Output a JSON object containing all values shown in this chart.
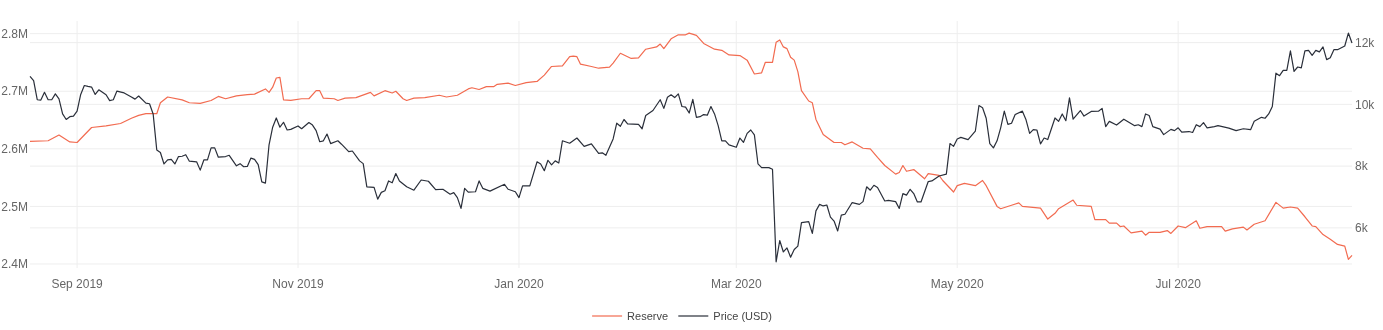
{
  "chart_data": {
    "type": "line",
    "xlim": [
      "2019-08-19",
      "2020-08-18"
    ],
    "xticks": [
      {
        "value": "2019-09-01",
        "label": "Sep 2019"
      },
      {
        "value": "2019-11-01",
        "label": "Nov 2019"
      },
      {
        "value": "2020-01-01",
        "label": "Jan 2020"
      },
      {
        "value": "2020-03-01",
        "label": "Mar 2020"
      },
      {
        "value": "2020-05-01",
        "label": "May 2020"
      },
      {
        "value": "2020-07-01",
        "label": "Jul 2020"
      }
    ],
    "ylim": [
      2393000,
      2822000
    ],
    "yticks": [
      {
        "value": 2400000,
        "label": "2.4M"
      },
      {
        "value": 2500000,
        "label": "2.5M"
      },
      {
        "value": 2600000,
        "label": "2.6M"
      },
      {
        "value": 2700000,
        "label": "2.7M"
      },
      {
        "value": 2800000,
        "label": "2.8M"
      }
    ],
    "y2lim": [
      4700,
      12700
    ],
    "y2ticks": [
      {
        "value": 6000,
        "label": "6k"
      },
      {
        "value": 8000,
        "label": "8k"
      },
      {
        "value": 10000,
        "label": "10k"
      },
      {
        "value": 12000,
        "label": "12k"
      }
    ],
    "grid": true,
    "legend": "bottom",
    "series": [
      {
        "name": "Reserve",
        "color": "#f26b50",
        "x": [
          "2019-08-19",
          "2019-08-24",
          "2019-08-27",
          "2019-08-30",
          "2019-09-01",
          "2019-09-05",
          "2019-09-09",
          "2019-09-13",
          "2019-09-16",
          "2019-09-18",
          "2019-09-20",
          "2019-09-23",
          "2019-09-24",
          "2019-09-26",
          "2019-09-30",
          "2019-10-02",
          "2019-10-05",
          "2019-10-08",
          "2019-10-10",
          "2019-10-12",
          "2019-10-15",
          "2019-10-18",
          "2019-10-20",
          "2019-10-23",
          "2019-10-24",
          "2019-10-25",
          "2019-10-26",
          "2019-10-27",
          "2019-10-28",
          "2019-10-30",
          "2019-11-02",
          "2019-11-04",
          "2019-11-06",
          "2019-11-07",
          "2019-11-08",
          "2019-11-11",
          "2019-11-12",
          "2019-11-14",
          "2019-11-17",
          "2019-11-21",
          "2019-11-22",
          "2019-11-25",
          "2019-11-27",
          "2019-11-28",
          "2019-11-30",
          "2019-12-01",
          "2019-12-03",
          "2019-12-06",
          "2019-12-10",
          "2019-12-12",
          "2019-12-15",
          "2019-12-18",
          "2019-12-19",
          "2019-12-21",
          "2019-12-23",
          "2019-12-25",
          "2019-12-26",
          "2019-12-29",
          "2019-12-31",
          "2020-01-03",
          "2020-01-06",
          "2020-01-08",
          "2020-01-10",
          "2020-01-13",
          "2020-01-15",
          "2020-01-16",
          "2020-01-17",
          "2020-01-18",
          "2020-01-21",
          "2020-01-23",
          "2020-01-26",
          "2020-01-27",
          "2020-01-29",
          "2020-02-01",
          "2020-02-03",
          "2020-02-05",
          "2020-02-08",
          "2020-02-09",
          "2020-02-10",
          "2020-02-12",
          "2020-02-14",
          "2020-02-16",
          "2020-02-17",
          "2020-02-19",
          "2020-02-21",
          "2020-02-24",
          "2020-02-26",
          "2020-02-28",
          "2020-03-02",
          "2020-03-04",
          "2020-03-06",
          "2020-03-08",
          "2020-03-09",
          "2020-03-11",
          "2020-03-12",
          "2020-03-13",
          "2020-03-14",
          "2020-03-15",
          "2020-03-16",
          "2020-03-17",
          "2020-03-18",
          "2020-03-19",
          "2020-03-21",
          "2020-03-22",
          "2020-03-23",
          "2020-03-25",
          "2020-03-28",
          "2020-03-30",
          "2020-03-31",
          "2020-04-02",
          "2020-04-05",
          "2020-04-07",
          "2020-04-09",
          "2020-04-11",
          "2020-04-14",
          "2020-04-15",
          "2020-04-16",
          "2020-04-17",
          "2020-04-19",
          "2020-04-22",
          "2020-04-23",
          "2020-04-26",
          "2020-04-27",
          "2020-04-30",
          "2020-05-01",
          "2020-05-03",
          "2020-05-06",
          "2020-05-08",
          "2020-05-09",
          "2020-05-12",
          "2020-05-13",
          "2020-05-16",
          "2020-05-18",
          "2020-05-19",
          "2020-05-24",
          "2020-05-26",
          "2020-05-28",
          "2020-05-29",
          "2020-06-02",
          "2020-06-03",
          "2020-06-07",
          "2020-06-08",
          "2020-06-11",
          "2020-06-12",
          "2020-06-14",
          "2020-06-15",
          "2020-06-16",
          "2020-06-18",
          "2020-06-21",
          "2020-06-22",
          "2020-06-23",
          "2020-06-26",
          "2020-06-28",
          "2020-06-29",
          "2020-07-01",
          "2020-07-03",
          "2020-07-06",
          "2020-07-07",
          "2020-07-09",
          "2020-07-13",
          "2020-07-14",
          "2020-07-16",
          "2020-07-19",
          "2020-07-20",
          "2020-07-22",
          "2020-07-25",
          "2020-07-28",
          "2020-07-30",
          "2020-08-01",
          "2020-08-03",
          "2020-08-05",
          "2020-08-07",
          "2020-08-08",
          "2020-08-10",
          "2020-08-12",
          "2020-08-14",
          "2020-08-16",
          "2020-08-17",
          "2020-08-18"
        ],
        "values": [
          2613000,
          2614000,
          2624000,
          2612000,
          2611000,
          2637000,
          2640000,
          2644000,
          2653000,
          2658000,
          2661000,
          2661000,
          2680000,
          2690000,
          2685000,
          2680000,
          2679000,
          2684000,
          2691000,
          2687000,
          2692000,
          2694000,
          2695000,
          2704000,
          2698000,
          2707000,
          2723000,
          2724000,
          2685000,
          2684000,
          2687000,
          2687000,
          2701000,
          2701000,
          2688000,
          2687000,
          2684000,
          2688000,
          2689000,
          2698000,
          2692000,
          2701000,
          2697000,
          2700000,
          2687000,
          2684000,
          2688000,
          2689000,
          2693000,
          2690000,
          2693000,
          2704000,
          2706000,
          2703000,
          2708000,
          2708000,
          2712000,
          2714000,
          2710000,
          2715000,
          2717000,
          2728000,
          2743000,
          2744000,
          2760000,
          2761000,
          2760000,
          2747000,
          2743000,
          2740000,
          2742000,
          2749000,
          2766000,
          2757000,
          2758000,
          2773000,
          2777000,
          2782000,
          2774000,
          2791000,
          2798000,
          2798000,
          2801000,
          2797000,
          2783000,
          2773000,
          2771000,
          2763000,
          2762000,
          2754000,
          2730000,
          2732000,
          2750000,
          2750000,
          2785000,
          2789000,
          2777000,
          2774000,
          2759000,
          2754000,
          2734000,
          2701000,
          2683000,
          2680000,
          2651000,
          2625000,
          2611000,
          2611000,
          2607000,
          2612000,
          2601000,
          2600000,
          2585000,
          2571000,
          2556000,
          2559000,
          2571000,
          2561000,
          2564000,
          2548000,
          2557000,
          2554000,
          2545000,
          2525000,
          2536000,
          2540000,
          2536000,
          2545000,
          2536000,
          2500000,
          2496000,
          2502000,
          2506000,
          2500000,
          2497000,
          2478000,
          2488000,
          2496000,
          2511000,
          2502000,
          2500000,
          2477000,
          2477000,
          2471000,
          2471000,
          2465000,
          2466000,
          2454000,
          2457000,
          2450000,
          2455000,
          2455000,
          2458000,
          2453000,
          2466000,
          2463000,
          2475000,
          2462000,
          2465000,
          2465000,
          2457000,
          2461000,
          2464000,
          2459000,
          2469000,
          2475000,
          2507000,
          2497000,
          2499000,
          2497000,
          2482000,
          2466000,
          2465000,
          2451000,
          2443000,
          2434000,
          2431000,
          2408000,
          2415000
        ]
      },
      {
        "name": "Price (USD)",
        "color": "#2a2f3a",
        "axis": "y2",
        "x": [
          "2019-08-19",
          "2019-08-20",
          "2019-08-21",
          "2019-08-22",
          "2019-08-23",
          "2019-08-24",
          "2019-08-25",
          "2019-08-26",
          "2019-08-27",
          "2019-08-28",
          "2019-08-29",
          "2019-08-30",
          "2019-08-31",
          "2019-09-01",
          "2019-09-02",
          "2019-09-03",
          "2019-09-04",
          "2019-09-05",
          "2019-09-06",
          "2019-09-07",
          "2019-09-09",
          "2019-09-10",
          "2019-09-11",
          "2019-09-12",
          "2019-09-14",
          "2019-09-16",
          "2019-09-17",
          "2019-09-18",
          "2019-09-20",
          "2019-09-21",
          "2019-09-22",
          "2019-09-23",
          "2019-09-24",
          "2019-09-25",
          "2019-09-26",
          "2019-09-27",
          "2019-09-28",
          "2019-09-29",
          "2019-09-30",
          "2019-10-01",
          "2019-10-02",
          "2019-10-04",
          "2019-10-05",
          "2019-10-06",
          "2019-10-07",
          "2019-10-08",
          "2019-10-09",
          "2019-10-10",
          "2019-10-12",
          "2019-10-13",
          "2019-10-15",
          "2019-10-16",
          "2019-10-17",
          "2019-10-18",
          "2019-10-19",
          "2019-10-20",
          "2019-10-21",
          "2019-10-22",
          "2019-10-23",
          "2019-10-24",
          "2019-10-25",
          "2019-10-26",
          "2019-10-27",
          "2019-10-28",
          "2019-10-29",
          "2019-10-30",
          "2019-11-01",
          "2019-11-02",
          "2019-11-04",
          "2019-11-05",
          "2019-11-06",
          "2019-11-07",
          "2019-11-08",
          "2019-11-09",
          "2019-11-10",
          "2019-11-12",
          "2019-11-13",
          "2019-11-15",
          "2019-11-16",
          "2019-11-18",
          "2019-11-19",
          "2019-11-20",
          "2019-11-22",
          "2019-11-23",
          "2019-11-24",
          "2019-11-25",
          "2019-11-26",
          "2019-11-27",
          "2019-11-28",
          "2019-11-29",
          "2019-12-01",
          "2019-12-03",
          "2019-12-05",
          "2019-12-07",
          "2019-12-09",
          "2019-12-11",
          "2019-12-13",
          "2019-12-14",
          "2019-12-15",
          "2019-12-16",
          "2019-12-17",
          "2019-12-18",
          "2019-12-20",
          "2019-12-21",
          "2019-12-22",
          "2019-12-24",
          "2019-12-28",
          "2019-12-29",
          "2019-12-31",
          "2020-01-01",
          "2020-01-02",
          "2020-01-04",
          "2020-01-06",
          "2020-01-07",
          "2020-01-08",
          "2020-01-09",
          "2020-01-10",
          "2020-01-11",
          "2020-01-12",
          "2020-01-13",
          "2020-01-15",
          "2020-01-17",
          "2020-01-19",
          "2020-01-21",
          "2020-01-23",
          "2020-01-24",
          "2020-01-25",
          "2020-01-27",
          "2020-01-28",
          "2020-01-29",
          "2020-01-30",
          "2020-01-31",
          "2020-02-03",
          "2020-02-04",
          "2020-02-05",
          "2020-02-07",
          "2020-02-09",
          "2020-02-10",
          "2020-02-11",
          "2020-02-12",
          "2020-02-13",
          "2020-02-14",
          "2020-02-15",
          "2020-02-16",
          "2020-02-17",
          "2020-02-18",
          "2020-02-19",
          "2020-02-20",
          "2020-02-21",
          "2020-02-22",
          "2020-02-23",
          "2020-02-24",
          "2020-02-25",
          "2020-02-26",
          "2020-02-27",
          "2020-02-28",
          "2020-03-01",
          "2020-03-02",
          "2020-03-03",
          "2020-03-04",
          "2020-03-05",
          "2020-03-06",
          "2020-03-07",
          "2020-03-08",
          "2020-03-10",
          "2020-03-11",
          "2020-03-12",
          "2020-03-13",
          "2020-03-14",
          "2020-03-15",
          "2020-03-16",
          "2020-03-17",
          "2020-03-18",
          "2020-03-19",
          "2020-03-21",
          "2020-03-22",
          "2020-03-23",
          "2020-03-24",
          "2020-03-25",
          "2020-03-26",
          "2020-03-27",
          "2020-03-28",
          "2020-03-29",
          "2020-03-30",
          "2020-03-31",
          "2020-04-02",
          "2020-04-04",
          "2020-04-05",
          "2020-04-06",
          "2020-04-07",
          "2020-04-08",
          "2020-04-09",
          "2020-04-11",
          "2020-04-12",
          "2020-04-14",
          "2020-04-15",
          "2020-04-16",
          "2020-04-17",
          "2020-04-18",
          "2020-04-19",
          "2020-04-20",
          "2020-04-21",
          "2020-04-23",
          "2020-04-24",
          "2020-04-26",
          "2020-04-28",
          "2020-04-29",
          "2020-04-30",
          "2020-05-01",
          "2020-05-02",
          "2020-05-04",
          "2020-05-06",
          "2020-05-07",
          "2020-05-08",
          "2020-05-09",
          "2020-05-10",
          "2020-05-11",
          "2020-05-12",
          "2020-05-13",
          "2020-05-14",
          "2020-05-15",
          "2020-05-16",
          "2020-05-17",
          "2020-05-19",
          "2020-05-20",
          "2020-05-21",
          "2020-05-22",
          "2020-05-23",
          "2020-05-24",
          "2020-05-25",
          "2020-05-26",
          "2020-05-28",
          "2020-05-29",
          "2020-05-30",
          "2020-05-31",
          "2020-06-01",
          "2020-06-02",
          "2020-06-04",
          "2020-06-05",
          "2020-06-07",
          "2020-06-09",
          "2020-06-10",
          "2020-06-11",
          "2020-06-12",
          "2020-06-14",
          "2020-06-16",
          "2020-06-19",
          "2020-06-20",
          "2020-06-21",
          "2020-06-22",
          "2020-06-23",
          "2020-06-24",
          "2020-06-26",
          "2020-06-27",
          "2020-06-29",
          "2020-06-30",
          "2020-07-01",
          "2020-07-02",
          "2020-07-04",
          "2020-07-05",
          "2020-07-06",
          "2020-07-07",
          "2020-07-08",
          "2020-07-09",
          "2020-07-11",
          "2020-07-12",
          "2020-07-15",
          "2020-07-17",
          "2020-07-19",
          "2020-07-21",
          "2020-07-22",
          "2020-07-24",
          "2020-07-25",
          "2020-07-26",
          "2020-07-27",
          "2020-07-28",
          "2020-07-29",
          "2020-07-30",
          "2020-07-31",
          "2020-08-01",
          "2020-08-02",
          "2020-08-03",
          "2020-08-04",
          "2020-08-05",
          "2020-08-06",
          "2020-08-07",
          "2020-08-08",
          "2020-08-09",
          "2020-08-10",
          "2020-08-11",
          "2020-08-12",
          "2020-08-13",
          "2020-08-14",
          "2020-08-16",
          "2020-08-17",
          "2020-08-18"
        ],
        "values": [
          10910,
          10770,
          10150,
          10140,
          10390,
          10150,
          10150,
          10340,
          10180,
          9690,
          9510,
          9600,
          9620,
          9780,
          10320,
          10610,
          10580,
          10560,
          10320,
          10470,
          10310,
          10120,
          10150,
          10430,
          10370,
          10240,
          10170,
          10270,
          10040,
          10020,
          9690,
          8520,
          8440,
          8070,
          8200,
          8220,
          8070,
          8310,
          8320,
          8370,
          8160,
          8140,
          7870,
          8200,
          8200,
          8590,
          8590,
          8290,
          8310,
          8350,
          8010,
          8080,
          7980,
          7990,
          8260,
          8220,
          8050,
          7490,
          7450,
          8690,
          9260,
          9560,
          9260,
          9420,
          9170,
          9190,
          9300,
          9210,
          9410,
          9330,
          9150,
          8790,
          8820,
          9040,
          8730,
          8820,
          8710,
          8470,
          8490,
          8170,
          8080,
          7330,
          7310,
          6930,
          7150,
          7200,
          7520,
          7460,
          7760,
          7520,
          7330,
          7220,
          7550,
          7510,
          7240,
          7250,
          7090,
          7140,
          6980,
          6630,
          7280,
          7160,
          7170,
          7520,
          7280,
          7190,
          7410,
          7250,
          7170,
          6980,
          7360,
          7360,
          8140,
          8070,
          7850,
          8190,
          8040,
          8170,
          8100,
          8820,
          8740,
          8910,
          8640,
          8720,
          8410,
          8430,
          8350,
          8880,
          9390,
          9290,
          9510,
          9370,
          9350,
          9210,
          9640,
          9800,
          10150,
          9870,
          10230,
          10310,
          10220,
          10340,
          9930,
          9910,
          9720,
          10160,
          9580,
          9600,
          9670,
          9650,
          9930,
          9690,
          9310,
          8820,
          8820,
          8690,
          8610,
          8910,
          8770,
          9060,
          9170,
          9010,
          8070,
          7950,
          7950,
          7900,
          4900,
          5590,
          5220,
          5350,
          5050,
          5300,
          5410,
          6170,
          6200,
          5820,
          6550,
          6760,
          6710,
          6740,
          6350,
          6220,
          5900,
          6410,
          6440,
          6820,
          6760,
          6850,
          7330,
          7220,
          7380,
          7310,
          6870,
          6890,
          6850,
          6630,
          7110,
          7060,
          7250,
          7110,
          6840,
          6840,
          7500,
          7520,
          7680,
          7740,
          8730,
          8640,
          8880,
          8930,
          8860,
          9130,
          9960,
          9890,
          9550,
          8730,
          8590,
          8820,
          9240,
          9780,
          9350,
          9390,
          9670,
          9780,
          9500,
          9060,
          9180,
          9170,
          8720,
          8910,
          8860,
          9560,
          9450,
          9690,
          9470,
          10210,
          9520,
          9800,
          9620,
          9770,
          9780,
          9870,
          9280,
          9450,
          9330,
          9520,
          9310,
          9340,
          9280,
          9690,
          9640,
          9280,
          9200,
          9020,
          9190,
          9150,
          9240,
          9100,
          9120,
          9090,
          9340,
          9280,
          9410,
          9240,
          9280,
          9310,
          9230,
          9150,
          9210,
          9180,
          9450,
          9580,
          9550,
          9690,
          9930,
          11010,
          10930,
          11100,
          11100,
          11730,
          11070,
          11210,
          11180,
          11730,
          11750,
          11590,
          11750,
          11700,
          11860,
          11450,
          11510,
          11770,
          11770,
          11890,
          12310,
          11990
        ]
      }
    ]
  }
}
